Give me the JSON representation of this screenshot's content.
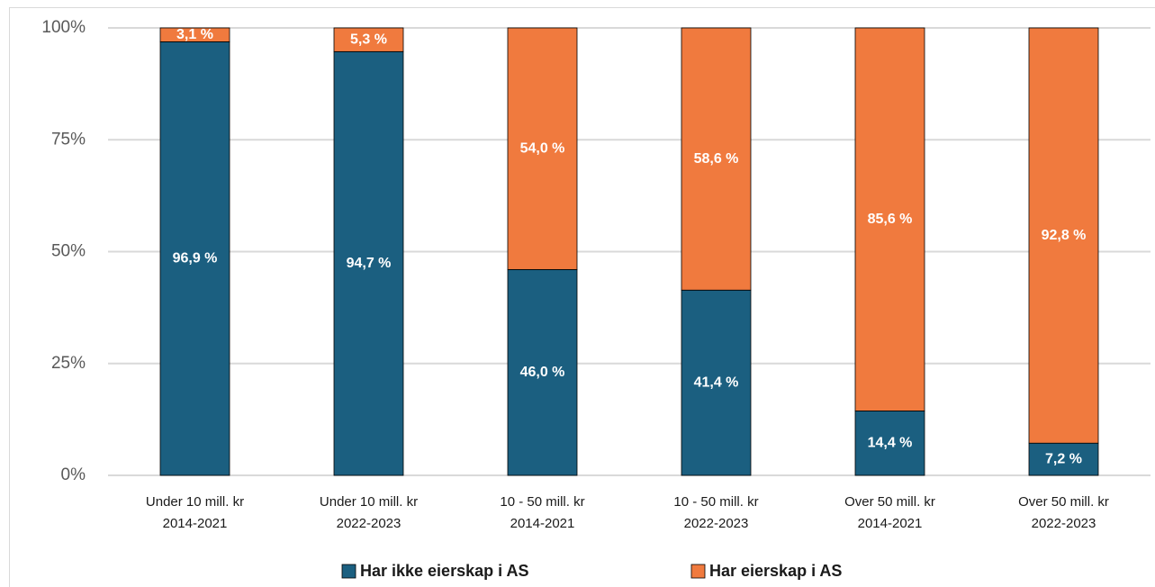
{
  "chart_data": {
    "type": "stacked_bar",
    "categories": [
      [
        "Under 10 mill. kr",
        "2014-2021"
      ],
      [
        "Under 10 mill. kr",
        "2022-2023"
      ],
      [
        "10 - 50 mill. kr",
        "2014-2021"
      ],
      [
        "10 - 50 mill. kr",
        "2022-2023"
      ],
      [
        "Over 50 mill. kr",
        "2014-2021"
      ],
      [
        "Over 50 mill. kr",
        "2022-2023"
      ]
    ],
    "series": [
      {
        "name": "Har ikke eierskap i AS",
        "color": "#1b5f80",
        "values": [
          96.9,
          94.7,
          46.0,
          41.4,
          14.4,
          7.2
        ],
        "value_labels": [
          "96,9 %",
          "94,7 %",
          "46,0 %",
          "41,4 %",
          "14,4 %",
          "7,2 %"
        ]
      },
      {
        "name": "Har eierskap i AS",
        "color": "#f07a3e",
        "values": [
          3.1,
          5.3,
          54.0,
          58.6,
          85.6,
          92.8
        ],
        "value_labels": [
          "3,1 %",
          "5,3 %",
          "54,0 %",
          "58,6 %",
          "85,6 %",
          "92,8 %"
        ]
      }
    ],
    "ylim": [
      0,
      100
    ],
    "yticks": [
      {
        "value": 0,
        "label": "0%"
      },
      {
        "value": 25,
        "label": "25%"
      },
      {
        "value": 50,
        "label": "50%"
      },
      {
        "value": 75,
        "label": "75%"
      },
      {
        "value": 100,
        "label": "100%"
      }
    ],
    "grid": true,
    "legend": "bottom"
  }
}
